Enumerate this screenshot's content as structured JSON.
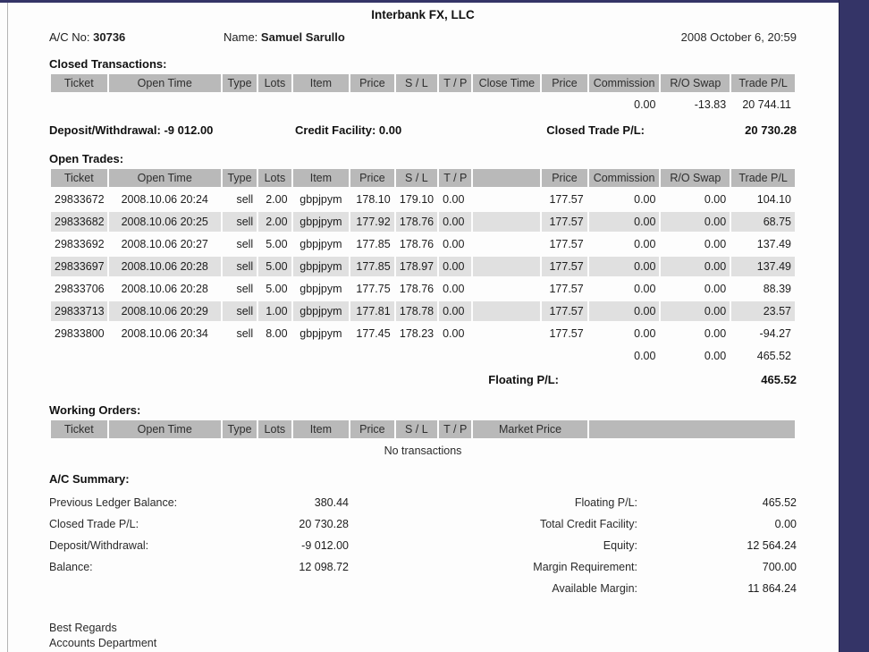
{
  "header": {
    "company": "Interbank FX, LLC",
    "account_label": "A/C No:",
    "account_number": "30736",
    "name_label": "Name:",
    "name_value": "Samuel Sarullo",
    "datetime": "2008 October 6, 20:59"
  },
  "closed_transactions": {
    "title": "Closed Transactions:",
    "columns": [
      "Ticket",
      "Open Time",
      "Type",
      "Lots",
      "Item",
      "Price",
      "S / L",
      "T / P",
      "Close Time",
      "Price",
      "Commission",
      "R/O Swap",
      "Trade P/L"
    ],
    "totals_row": [
      "",
      "",
      "",
      "",
      "",
      "",
      "",
      "",
      "",
      "",
      "0.00",
      "-13.83",
      "20 744.11"
    ],
    "deposit_withdrawal_label": "Deposit/Withdrawal:",
    "deposit_withdrawal_value": "-9 012.00",
    "credit_facility_label": "Credit Facility:",
    "credit_facility_value": "0.00",
    "closed_trade_pl_label": "Closed Trade P/L:",
    "closed_trade_pl_value": "20 730.28"
  },
  "open_trades": {
    "title": "Open Trades:",
    "columns": [
      "Ticket",
      "Open Time",
      "Type",
      "Lots",
      "Item",
      "Price",
      "S / L",
      "T / P",
      "",
      "Price",
      "Commission",
      "R/O Swap",
      "Trade P/L"
    ],
    "rows": [
      [
        "29833672",
        "2008.10.06 20:24",
        "sell",
        "2.00",
        "gbpjpym",
        "178.10",
        "179.10",
        "0.00",
        "",
        "177.57",
        "0.00",
        "0.00",
        "104.10"
      ],
      [
        "29833682",
        "2008.10.06 20:25",
        "sell",
        "2.00",
        "gbpjpym",
        "177.92",
        "178.76",
        "0.00",
        "",
        "177.57",
        "0.00",
        "0.00",
        "68.75"
      ],
      [
        "29833692",
        "2008.10.06 20:27",
        "sell",
        "5.00",
        "gbpjpym",
        "177.85",
        "178.76",
        "0.00",
        "",
        "177.57",
        "0.00",
        "0.00",
        "137.49"
      ],
      [
        "29833697",
        "2008.10.06 20:28",
        "sell",
        "5.00",
        "gbpjpym",
        "177.85",
        "178.97",
        "0.00",
        "",
        "177.57",
        "0.00",
        "0.00",
        "137.49"
      ],
      [
        "29833706",
        "2008.10.06 20:28",
        "sell",
        "5.00",
        "gbpjpym",
        "177.75",
        "178.76",
        "0.00",
        "",
        "177.57",
        "0.00",
        "0.00",
        "88.39"
      ],
      [
        "29833713",
        "2008.10.06 20:29",
        "sell",
        "1.00",
        "gbpjpym",
        "177.81",
        "178.78",
        "0.00",
        "",
        "177.57",
        "0.00",
        "0.00",
        "23.57"
      ],
      [
        "29833800",
        "2008.10.06 20:34",
        "sell",
        "8.00",
        "gbpjpym",
        "177.45",
        "178.23",
        "0.00",
        "",
        "177.57",
        "0.00",
        "0.00",
        "-94.27"
      ]
    ],
    "totals_row": [
      "",
      "",
      "",
      "",
      "",
      "",
      "",
      "",
      "",
      "",
      "0.00",
      "0.00",
      "465.52"
    ],
    "floating_pl_label": "Floating P/L:",
    "floating_pl_value": "465.52"
  },
  "working_orders": {
    "title": "Working Orders:",
    "columns": [
      "Ticket",
      "Open Time",
      "Type",
      "Lots",
      "Item",
      "Price",
      "S / L",
      "T / P",
      "Market Price",
      ""
    ],
    "empty_message": "No transactions"
  },
  "account_summary": {
    "title": "A/C Summary:",
    "left": [
      {
        "label": "Previous Ledger Balance:",
        "value": "380.44"
      },
      {
        "label": "Closed Trade P/L:",
        "value": "20 730.28"
      },
      {
        "label": "Deposit/Withdrawal:",
        "value": "-9 012.00"
      },
      {
        "label": "Balance:",
        "value": "12 098.72"
      }
    ],
    "right": [
      {
        "label": "Floating P/L:",
        "value": "465.52"
      },
      {
        "label": "Total Credit Facility:",
        "value": "0.00"
      },
      {
        "label": "Equity:",
        "value": "12 564.24"
      },
      {
        "label": "Margin Requirement:",
        "value": "700.00"
      },
      {
        "label": "Available Margin:",
        "value": "11 864.24"
      }
    ]
  },
  "footer": {
    "line1": "Best Regards",
    "line2": "Accounts Department"
  },
  "colors": {
    "accent_navy": "#343467",
    "table_header_gray": "#b9b9b9",
    "row_alt_gray": "#e0e0e0"
  }
}
